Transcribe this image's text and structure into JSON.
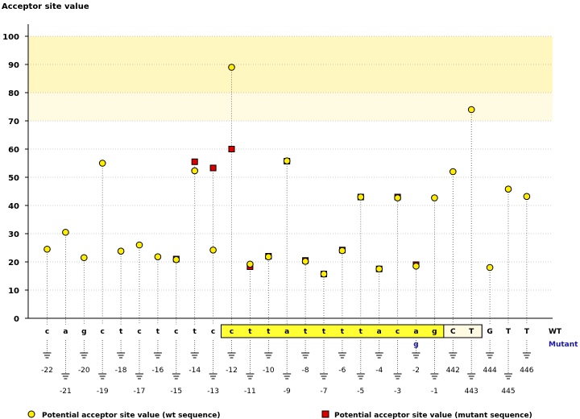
{
  "chart_data": {
    "type": "scatter",
    "title": "",
    "ylabel": "Acceptor site value",
    "xlabel": "",
    "ylim": [
      0,
      100
    ],
    "yticks": [
      0,
      10,
      20,
      30,
      40,
      50,
      60,
      70,
      80,
      90,
      100
    ],
    "highlight_bands": [
      {
        "from": 80,
        "to": 100,
        "color": "#fff6c0"
      },
      {
        "from": 70,
        "to": 80,
        "color": "#fffbe3"
      }
    ],
    "grid": true,
    "legend_position": "bottom",
    "row_labels": {
      "wt": "WT",
      "mutant": "Mutant"
    },
    "categories": [
      "c",
      "a",
      "g",
      "c",
      "t",
      "c",
      "t",
      "c",
      "t",
      "c",
      "c",
      "t",
      "t",
      "a",
      "t",
      "t",
      "t",
      "t",
      "a",
      "c",
      "a",
      "g",
      "C",
      "T",
      "G",
      "T",
      "T"
    ],
    "positions": [
      "-22",
      "-21",
      "-20",
      "-19",
      "-18",
      "-17",
      "-16",
      "-15",
      "-14",
      "-13",
      "-12",
      "-11",
      "-10",
      "-9",
      "-8",
      "-7",
      "-6",
      "-5",
      "-4",
      "-3",
      "-2",
      "-1",
      "442",
      "443",
      "444",
      "445",
      "446"
    ],
    "highlighted_range": [
      10,
      23
    ],
    "mutant_bases": {
      "20": "g"
    },
    "series": [
      {
        "name": "Potential acceptor site value (wt sequence)",
        "color": "#ffee00",
        "marker": "circle",
        "values": [
          24.5,
          30.5,
          21.5,
          55,
          23.8,
          26,
          21.8,
          20.8,
          52.3,
          24.2,
          89,
          19.2,
          21.8,
          55.8,
          20.2,
          15.7,
          24,
          43,
          17.5,
          42.7,
          18.5,
          42.7,
          52,
          74,
          18,
          45.8,
          43.2
        ]
      },
      {
        "name": "Potential acceptor site value (mutant sequence)",
        "color": "#dd0000",
        "marker": "square",
        "values": [
          null,
          null,
          null,
          null,
          null,
          null,
          null,
          21,
          55.5,
          53.3,
          60,
          18.3,
          22,
          55.7,
          20.5,
          15.7,
          24.2,
          43,
          17.5,
          43,
          19,
          null,
          null,
          null,
          null,
          null,
          null
        ]
      }
    ]
  }
}
